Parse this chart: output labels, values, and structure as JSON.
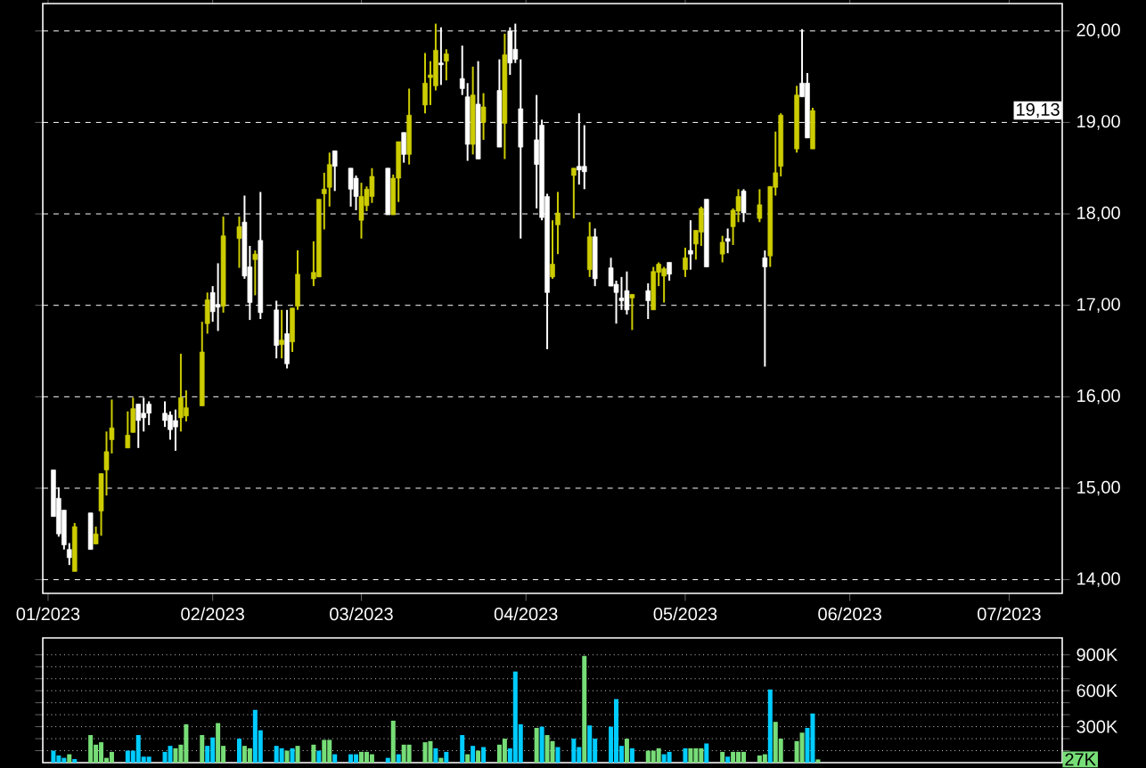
{
  "chart_data": [
    {
      "type": "candlestick",
      "x": [
        "2023-01-02",
        "2023-01-03",
        "2023-01-04",
        "2023-01-05",
        "2023-01-06",
        "2023-01-09",
        "2023-01-10",
        "2023-01-11",
        "2023-01-12",
        "2023-01-13",
        "2023-01-16",
        "2023-01-17",
        "2023-01-18",
        "2023-01-19",
        "2023-01-20",
        "2023-01-23",
        "2023-01-24",
        "2023-01-25",
        "2023-01-26",
        "2023-01-27",
        "2023-01-30",
        "2023-01-31",
        "2023-02-01",
        "2023-02-02",
        "2023-02-03",
        "2023-02-06",
        "2023-02-07",
        "2023-02-08",
        "2023-02-09",
        "2023-02-10",
        "2023-02-13",
        "2023-02-14",
        "2023-02-15",
        "2023-02-16",
        "2023-02-17",
        "2023-02-20",
        "2023-02-21",
        "2023-02-22",
        "2023-02-23",
        "2023-02-24",
        "2023-02-27",
        "2023-02-28",
        "2023-03-01",
        "2023-03-02",
        "2023-03-03",
        "2023-03-06",
        "2023-03-07",
        "2023-03-08",
        "2023-03-09",
        "2023-03-10",
        "2023-03-13",
        "2023-03-14",
        "2023-03-15",
        "2023-03-16",
        "2023-03-17",
        "2023-03-20",
        "2023-03-21",
        "2023-03-22",
        "2023-03-23",
        "2023-03-24",
        "2023-03-27",
        "2023-03-28",
        "2023-03-29",
        "2023-03-30",
        "2023-03-31",
        "2023-04-03",
        "2023-04-04",
        "2023-04-05",
        "2023-04-06",
        "2023-04-07",
        "2023-04-10",
        "2023-04-11",
        "2023-04-12",
        "2023-04-13",
        "2023-04-14",
        "2023-04-17",
        "2023-04-18",
        "2023-04-19",
        "2023-04-20",
        "2023-04-21",
        "2023-04-24",
        "2023-04-25",
        "2023-04-26",
        "2023-04-27",
        "2023-04-28",
        "2023-05-01",
        "2023-05-02",
        "2023-05-03",
        "2023-05-04",
        "2023-05-05",
        "2023-05-08",
        "2023-05-09",
        "2023-05-10",
        "2023-05-11",
        "2023-05-12",
        "2023-05-15",
        "2023-05-16",
        "2023-05-17",
        "2023-05-18",
        "2023-05-19",
        "2023-05-22",
        "2023-05-23",
        "2023-05-24",
        "2023-05-25"
      ],
      "ohlc": [
        [
          15.2,
          15.2,
          14.69,
          14.69
        ],
        [
          14.89,
          15.01,
          14.47,
          14.5
        ],
        [
          14.76,
          14.76,
          14.33,
          14.38
        ],
        [
          14.33,
          14.4,
          14.16,
          14.24
        ],
        [
          14.09,
          14.62,
          14.09,
          14.58
        ],
        [
          14.73,
          14.73,
          14.33,
          14.33
        ],
        [
          14.39,
          14.58,
          14.39,
          14.5
        ],
        [
          14.75,
          15.16,
          14.48,
          15.16
        ],
        [
          15.2,
          15.62,
          14.92,
          15.4
        ],
        [
          15.53,
          15.97,
          15.38,
          15.66
        ],
        [
          15.44,
          15.84,
          15.44,
          15.58
        ],
        [
          15.61,
          15.99,
          15.61,
          15.87
        ],
        [
          15.92,
          15.92,
          15.44,
          15.74
        ],
        [
          15.82,
          15.99,
          15.62,
          15.77
        ],
        [
          15.92,
          15.95,
          15.69,
          15.82
        ],
        [
          15.82,
          15.95,
          15.67,
          15.74
        ],
        [
          15.8,
          15.84,
          15.53,
          15.64
        ],
        [
          15.74,
          15.86,
          15.41,
          15.67
        ],
        [
          15.77,
          16.47,
          15.62,
          15.99
        ],
        [
          15.79,
          16.07,
          15.73,
          15.88
        ],
        [
          15.9,
          16.82,
          15.9,
          16.49
        ],
        [
          16.8,
          17.14,
          16.69,
          17.06
        ],
        [
          17.14,
          17.21,
          16.82,
          16.93
        ],
        [
          17.01,
          17.46,
          16.72,
          16.98
        ],
        [
          16.99,
          17.97,
          16.92,
          17.76
        ],
        [
          17.73,
          17.97,
          17.41,
          17.86
        ],
        [
          17.91,
          18.2,
          17.29,
          17.32
        ],
        [
          17.42,
          17.65,
          16.84,
          17.03
        ],
        [
          17.5,
          17.6,
          17.11,
          17.56
        ],
        [
          17.71,
          18.24,
          16.85,
          16.92
        ],
        [
          16.95,
          17.05,
          16.42,
          16.56
        ],
        [
          16.57,
          16.95,
          16.42,
          16.62
        ],
        [
          16.69,
          16.95,
          16.31,
          16.36
        ],
        [
          16.6,
          16.97,
          16.49,
          16.97
        ],
        [
          16.99,
          17.6,
          16.95,
          17.34
        ],
        [
          17.29,
          17.7,
          17.21,
          17.36
        ],
        [
          17.31,
          18.16,
          17.31,
          18.16
        ],
        [
          18.22,
          18.45,
          17.83,
          18.27
        ],
        [
          18.29,
          18.67,
          18.08,
          18.54
        ],
        [
          18.69,
          18.69,
          18.25,
          18.52
        ],
        [
          18.5,
          18.5,
          18.08,
          18.27
        ],
        [
          18.39,
          18.42,
          18.04,
          18.19
        ],
        [
          17.93,
          18.34,
          17.73,
          18.19
        ],
        [
          18.09,
          18.3,
          18.03,
          18.27
        ],
        [
          18.19,
          18.5,
          18.12,
          18.41
        ],
        [
          18.5,
          18.5,
          17.99,
          17.99
        ],
        [
          17.99,
          18.43,
          17.99,
          18.39
        ],
        [
          18.39,
          18.79,
          18.13,
          18.79
        ],
        [
          18.89,
          18.89,
          18.56,
          18.65
        ],
        [
          18.65,
          19.37,
          18.54,
          19.08
        ],
        [
          19.19,
          19.76,
          19.1,
          19.43
        ],
        [
          19.49,
          19.67,
          19.19,
          19.52
        ],
        [
          19.4,
          20.08,
          19.35,
          19.79
        ],
        [
          19.65,
          20.04,
          19.41,
          19.63
        ],
        [
          19.67,
          19.8,
          19.46,
          19.75
        ],
        [
          19.48,
          19.84,
          19.3,
          19.37
        ],
        [
          19.28,
          19.43,
          18.58,
          18.76
        ],
        [
          18.76,
          19.61,
          18.65,
          19.3
        ],
        [
          19.2,
          19.67,
          18.6,
          18.6
        ],
        [
          19.0,
          19.32,
          18.81,
          19.17
        ],
        [
          19.35,
          19.69,
          18.73,
          18.73
        ],
        [
          18.99,
          19.97,
          18.6,
          19.74
        ],
        [
          20.0,
          20.04,
          19.52,
          19.65
        ],
        [
          19.8,
          20.08,
          19.65,
          19.69
        ],
        [
          19.15,
          19.69,
          17.73,
          18.73
        ],
        [
          18.81,
          19.3,
          18.06,
          18.54
        ],
        [
          18.97,
          19.03,
          17.93,
          17.96
        ],
        [
          18.19,
          18.22,
          16.52,
          17.14
        ],
        [
          17.31,
          17.93,
          17.29,
          17.45
        ],
        [
          17.88,
          18.24,
          17.56,
          18.01
        ],
        [
          18.42,
          18.5,
          17.95,
          18.5
        ],
        [
          18.52,
          19.1,
          18.32,
          18.48
        ],
        [
          18.52,
          18.97,
          18.27,
          18.46
        ],
        [
          17.39,
          17.91,
          17.31,
          17.75
        ],
        [
          17.75,
          17.84,
          17.21,
          17.29
        ],
        [
          17.41,
          17.52,
          17.21,
          17.21
        ],
        [
          17.23,
          17.27,
          16.8,
          17.14
        ],
        [
          17.08,
          17.31,
          16.95,
          17.05
        ],
        [
          17.16,
          17.37,
          16.9,
          16.95
        ],
        [
          17.08,
          17.12,
          16.73,
          17.12
        ],
        [
          17.16,
          17.24,
          16.85,
          17.05
        ],
        [
          16.95,
          17.42,
          16.95,
          17.37
        ],
        [
          17.36,
          17.47,
          17.21,
          17.45
        ],
        [
          17.32,
          17.42,
          17.03,
          17.4
        ],
        [
          17.47,
          17.47,
          17.27,
          17.34
        ],
        [
          17.39,
          17.63,
          17.31,
          17.52
        ],
        [
          17.6,
          17.93,
          17.39,
          17.56
        ],
        [
          17.67,
          17.82,
          17.5,
          17.82
        ],
        [
          17.8,
          18.08,
          17.65,
          18.06
        ],
        [
          18.16,
          18.16,
          17.42,
          17.42
        ],
        [
          17.56,
          17.76,
          17.47,
          17.69
        ],
        [
          17.73,
          17.84,
          17.57,
          17.7
        ],
        [
          17.86,
          18.06,
          17.66,
          18.04
        ],
        [
          18.03,
          18.27,
          17.91,
          18.19
        ],
        [
          18.25,
          18.27,
          17.91,
          18.01
        ],
        [
          17.95,
          18.27,
          17.91,
          18.1
        ],
        [
          17.52,
          17.6,
          16.33,
          17.42
        ],
        [
          17.54,
          18.3,
          17.42,
          18.3
        ],
        [
          18.29,
          18.9,
          18.2,
          18.45
        ],
        [
          18.52,
          19.1,
          18.41,
          19.08
        ],
        [
          18.71,
          19.4,
          18.67,
          19.3
        ],
        [
          19.43,
          20.02,
          19.28,
          19.28
        ],
        [
          19.43,
          19.54,
          18.83,
          18.83
        ],
        [
          18.71,
          19.16,
          18.71,
          19.13
        ]
      ],
      "colors": [
        "#ffffff",
        "#ffffff",
        "#ffffff",
        "#ffffff",
        "#cccc00",
        "#ffffff",
        "#cccc00",
        "#cccc00",
        "#cccc00",
        "#cccc00",
        "#cccc00",
        "#cccc00",
        "#ffffff",
        "#ffffff",
        "#ffffff",
        "#ffffff",
        "#ffffff",
        "#ffffff",
        "#cccc00",
        "#cccc00",
        "#cccc00",
        "#cccc00",
        "#ffffff",
        "#ffffff",
        "#cccc00",
        "#cccc00",
        "#ffffff",
        "#ffffff",
        "#cccc00",
        "#ffffff",
        "#ffffff",
        "#cccc00",
        "#ffffff",
        "#cccc00",
        "#cccc00",
        "#cccc00",
        "#cccc00",
        "#cccc00",
        "#cccc00",
        "#ffffff",
        "#ffffff",
        "#ffffff",
        "#cccc00",
        "#cccc00",
        "#cccc00",
        "#ffffff",
        "#cccc00",
        "#cccc00",
        "#ffffff",
        "#cccc00",
        "#cccc00",
        "#cccc00",
        "#cccc00",
        "#ffffff",
        "#cccc00",
        "#ffffff",
        "#ffffff",
        "#cccc00",
        "#ffffff",
        "#cccc00",
        "#ffffff",
        "#cccc00",
        "#ffffff",
        "#ffffff",
        "#ffffff",
        "#ffffff",
        "#ffffff",
        "#ffffff",
        "#cccc00",
        "#cccc00",
        "#cccc00",
        "#ffffff",
        "#ffffff",
        "#cccc00",
        "#ffffff",
        "#ffffff",
        "#ffffff",
        "#ffffff",
        "#ffffff",
        "#cccc00",
        "#ffffff",
        "#cccc00",
        "#cccc00",
        "#cccc00",
        "#ffffff",
        "#cccc00",
        "#ffffff",
        "#cccc00",
        "#cccc00",
        "#ffffff",
        "#cccc00",
        "#ffffff",
        "#cccc00",
        "#cccc00",
        "#ffffff",
        "#cccc00",
        "#ffffff",
        "#cccc00",
        "#cccc00",
        "#cccc00",
        "#cccc00",
        "#ffffff",
        "#ffffff",
        "#cccc00"
      ],
      "xlim": [
        "2022-12-31",
        "2023-07-11"
      ],
      "xticks": [
        {
          "value": "2023-01-01",
          "label": "01/2023"
        },
        {
          "value": "2023-02-01",
          "label": "02/2023"
        },
        {
          "value": "2023-03-01",
          "label": "03/2023"
        },
        {
          "value": "2023-04-01",
          "label": "04/2023"
        },
        {
          "value": "2023-05-01",
          "label": "05/2023"
        },
        {
          "value": "2023-06-01",
          "label": "06/2023"
        },
        {
          "value": "2023-07-01",
          "label": "07/2023"
        }
      ],
      "ylim": [
        13.85,
        20.3
      ],
      "yticks": [
        {
          "value": 14,
          "label": "14,00"
        },
        {
          "value": 15,
          "label": "15,00"
        },
        {
          "value": 16,
          "label": "16,00"
        },
        {
          "value": 17,
          "label": "17,00"
        },
        {
          "value": 18,
          "label": "18,00"
        },
        {
          "value": 19,
          "label": "19,00"
        },
        {
          "value": 20,
          "label": "20,00"
        }
      ],
      "grid": "y",
      "annotations": [
        {
          "text": "19,13",
          "y": 19.13
        }
      ]
    },
    {
      "type": "bar",
      "x": [
        "2023-01-02",
        "2023-01-03",
        "2023-01-04",
        "2023-01-05",
        "2023-01-06",
        "2023-01-09",
        "2023-01-10",
        "2023-01-11",
        "2023-01-12",
        "2023-01-13",
        "2023-01-16",
        "2023-01-17",
        "2023-01-18",
        "2023-01-19",
        "2023-01-20",
        "2023-01-23",
        "2023-01-24",
        "2023-01-25",
        "2023-01-26",
        "2023-01-27",
        "2023-01-30",
        "2023-01-31",
        "2023-02-01",
        "2023-02-02",
        "2023-02-03",
        "2023-02-06",
        "2023-02-07",
        "2023-02-08",
        "2023-02-09",
        "2023-02-10",
        "2023-02-13",
        "2023-02-14",
        "2023-02-15",
        "2023-02-16",
        "2023-02-17",
        "2023-02-20",
        "2023-02-21",
        "2023-02-22",
        "2023-02-23",
        "2023-02-24",
        "2023-02-27",
        "2023-02-28",
        "2023-03-01",
        "2023-03-02",
        "2023-03-03",
        "2023-03-06",
        "2023-03-07",
        "2023-03-08",
        "2023-03-09",
        "2023-03-10",
        "2023-03-13",
        "2023-03-14",
        "2023-03-15",
        "2023-03-16",
        "2023-03-17",
        "2023-03-20",
        "2023-03-21",
        "2023-03-22",
        "2023-03-23",
        "2023-03-24",
        "2023-03-27",
        "2023-03-28",
        "2023-03-29",
        "2023-03-30",
        "2023-03-31",
        "2023-04-03",
        "2023-04-04",
        "2023-04-05",
        "2023-04-06",
        "2023-04-07",
        "2023-04-10",
        "2023-04-11",
        "2023-04-12",
        "2023-04-13",
        "2023-04-14",
        "2023-04-17",
        "2023-04-18",
        "2023-04-19",
        "2023-04-20",
        "2023-04-21",
        "2023-04-24",
        "2023-04-25",
        "2023-04-26",
        "2023-04-27",
        "2023-04-28",
        "2023-05-01",
        "2023-05-02",
        "2023-05-03",
        "2023-05-04",
        "2023-05-05",
        "2023-05-08",
        "2023-05-09",
        "2023-05-10",
        "2023-05-11",
        "2023-05-12",
        "2023-05-15",
        "2023-05-16",
        "2023-05-17",
        "2023-05-18",
        "2023-05-19",
        "2023-05-22",
        "2023-05-23",
        "2023-05-24",
        "2023-05-25",
        "2023-05-26"
      ],
      "values": [
        100,
        60,
        40,
        70,
        30,
        230,
        150,
        170,
        40,
        90,
        100,
        100,
        230,
        50,
        50,
        90,
        140,
        120,
        150,
        320,
        230,
        140,
        210,
        330,
        140,
        200,
        140,
        120,
        440,
        270,
        140,
        120,
        100,
        120,
        140,
        150,
        100,
        190,
        190,
        70,
        70,
        70,
        90,
        90,
        70,
        40,
        350,
        70,
        150,
        150,
        170,
        180,
        120,
        40,
        90,
        230,
        70,
        140,
        100,
        130,
        150,
        200,
        120,
        760,
        320,
        290,
        300,
        230,
        180,
        130,
        200,
        130,
        890,
        310,
        200,
        300,
        530,
        140,
        200,
        120,
        100,
        100,
        120,
        70,
        90,
        120,
        120,
        120,
        120,
        160,
        90,
        50,
        90,
        90,
        90,
        60,
        70,
        610,
        340,
        200,
        180,
        250,
        290,
        410,
        27
      ],
      "colors": [
        "#00ccff",
        "#00ccff",
        "#00ccff",
        "#77dd77",
        "#00ccff",
        "#77dd77",
        "#77dd77",
        "#77dd77",
        "#77dd77",
        "#77dd77",
        "#00ccff",
        "#00ccff",
        "#00ccff",
        "#00ccff",
        "#00ccff",
        "#00ccff",
        "#00ccff",
        "#77dd77",
        "#77dd77",
        "#77dd77",
        "#77dd77",
        "#00ccff",
        "#00ccff",
        "#77dd77",
        "#77dd77",
        "#00ccff",
        "#77dd77",
        "#77dd77",
        "#00ccff",
        "#00ccff",
        "#00ccff",
        "#00ccff",
        "#77dd77",
        "#00ccff",
        "#77dd77",
        "#77dd77",
        "#00ccff",
        "#77dd77",
        "#77dd77",
        "#00ccff",
        "#00ccff",
        "#00ccff",
        "#77dd77",
        "#77dd77",
        "#77dd77",
        "#00ccff",
        "#77dd77",
        "#00ccff",
        "#77dd77",
        "#77dd77",
        "#77dd77",
        "#77dd77",
        "#00ccff",
        "#77dd77",
        "#00ccff",
        "#00ccff",
        "#77dd77",
        "#00ccff",
        "#77dd77",
        "#00ccff",
        "#77dd77",
        "#77dd77",
        "#00ccff",
        "#00ccff",
        "#00ccff",
        "#77dd77",
        "#00ccff",
        "#77dd77",
        "#77dd77",
        "#00ccff",
        "#00ccff",
        "#00ccff",
        "#77dd77",
        "#00ccff",
        "#00ccff",
        "#00ccff",
        "#00ccff",
        "#00ccff",
        "#77dd77",
        "#00ccff",
        "#77dd77",
        "#77dd77",
        "#77dd77",
        "#00ccff",
        "#00ccff",
        "#00ccff",
        "#77dd77",
        "#77dd77",
        "#77dd77",
        "#00ccff",
        "#77dd77",
        "#00ccff",
        "#77dd77",
        "#77dd77",
        "#77dd77",
        "#77dd77",
        "#77dd77",
        "#00ccff",
        "#77dd77",
        "#77dd77",
        "#77dd77",
        "#77dd77",
        "#00ccff",
        "#00ccff",
        "#77dd77"
      ],
      "xlim": [
        "2022-12-31",
        "2023-07-11"
      ],
      "ylim": [
        0,
        1040
      ],
      "yticks": [
        {
          "value": 100,
          "label": null
        },
        {
          "value": 200,
          "label": null
        },
        {
          "value": 300,
          "label": "300K"
        },
        {
          "value": 400,
          "label": null
        },
        {
          "value": 500,
          "label": null
        },
        {
          "value": 600,
          "label": "600K"
        },
        {
          "value": 700,
          "label": null
        },
        {
          "value": 800,
          "label": null
        },
        {
          "value": 900,
          "label": "900K"
        }
      ],
      "grid": "y",
      "tick_labels": "y",
      "annotations": [
        {
          "text": "27K",
          "y": 27
        }
      ]
    }
  ]
}
